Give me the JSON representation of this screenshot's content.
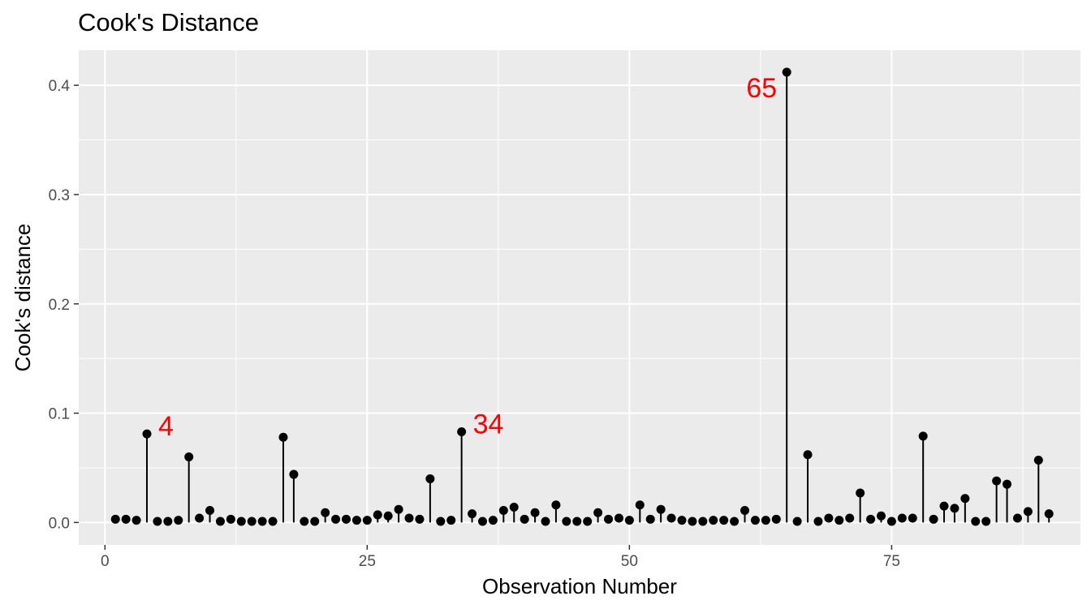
{
  "chart_data": {
    "type": "scatter",
    "style": "lollipop",
    "title": "Cook's Distance",
    "xlabel": "Observation Number",
    "ylabel": "Cook's distance",
    "xlim": [
      -2.5,
      93
    ],
    "ylim": [
      -0.0205,
      0.432
    ],
    "xticks": [
      0,
      25,
      50,
      75
    ],
    "yticks": [
      0.0,
      0.1,
      0.2,
      0.3,
      0.4
    ],
    "xtick_labels": [
      "0",
      "25",
      "50",
      "75"
    ],
    "ytick_labels": [
      "0.0",
      "0.1",
      "0.2",
      "0.3",
      "0.4"
    ],
    "grid": true,
    "panel_background": "#ebebeb",
    "grid_color": "#ffffff",
    "point_color": "#000000",
    "annotation_color": "#ff0000",
    "series": [
      {
        "x": [
          1,
          2,
          3,
          4,
          5,
          6,
          7,
          8,
          9,
          10,
          11,
          12,
          13,
          14,
          15,
          16,
          17,
          18,
          19,
          20,
          21,
          22,
          23,
          24,
          25,
          26,
          27,
          28,
          29,
          30,
          31,
          32,
          33,
          34,
          35,
          36,
          37,
          38,
          39,
          40,
          41,
          42,
          43,
          44,
          45,
          46,
          47,
          48,
          49,
          50,
          51,
          52,
          53,
          54,
          55,
          56,
          57,
          58,
          59,
          60,
          61,
          62,
          63,
          64,
          65,
          66,
          67,
          68,
          69,
          70,
          71,
          72,
          73,
          74,
          75,
          76,
          77,
          78,
          79,
          80,
          81,
          82,
          83,
          84,
          85,
          86,
          87,
          88,
          89,
          90
        ],
        "values": [
          0.003,
          0.003,
          0.002,
          0.081,
          0.001,
          0.001,
          0.002,
          0.06,
          0.004,
          0.011,
          0.001,
          0.003,
          0.001,
          0.001,
          0.001,
          0.001,
          0.078,
          0.044,
          0.001,
          0.001,
          0.009,
          0.003,
          0.003,
          0.002,
          0.002,
          0.007,
          0.006,
          0.012,
          0.004,
          0.003,
          0.04,
          0.001,
          0.002,
          0.083,
          0.008,
          0.001,
          0.002,
          0.011,
          0.014,
          0.003,
          0.009,
          0.001,
          0.016,
          0.001,
          0.001,
          0.001,
          0.009,
          0.003,
          0.004,
          0.002,
          0.016,
          0.003,
          0.012,
          0.004,
          0.002,
          0.001,
          0.001,
          0.002,
          0.002,
          0.001,
          0.011,
          0.002,
          0.002,
          0.003,
          0.412,
          0.001,
          0.062,
          0.001,
          0.004,
          0.002,
          0.004,
          0.027,
          0.003,
          0.006,
          0.001,
          0.004,
          0.004,
          0.079,
          0.003,
          0.015,
          0.013,
          0.022,
          0.001,
          0.001,
          0.038,
          0.035,
          0.004,
          0.01,
          0.057,
          0.008
        ]
      }
    ],
    "annotations": [
      {
        "label": "4",
        "x": 4,
        "y": 0.081,
        "side": "right"
      },
      {
        "label": "34",
        "x": 34,
        "y": 0.083,
        "side": "right"
      },
      {
        "label": "65",
        "x": 65,
        "y": 0.412,
        "side": "left"
      }
    ]
  }
}
